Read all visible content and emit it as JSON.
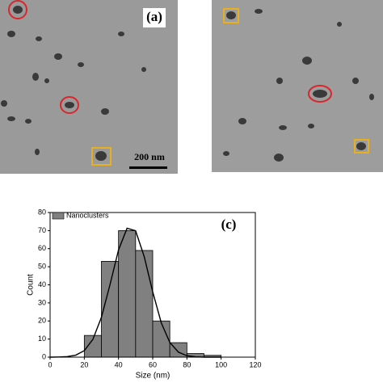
{
  "panel_a": {
    "label": "(a)",
    "scale_bar": "200 nm"
  },
  "chart_data": {
    "type": "histogram",
    "label": "(c)",
    "xlabel": "Size (nm)",
    "ylabel": "Count",
    "series": [
      {
        "name": "Nanoclusters",
        "color": "#808080"
      }
    ],
    "bins": [
      20,
      30,
      40,
      50,
      60,
      70,
      80,
      90,
      100
    ],
    "counts": [
      12,
      53,
      70,
      59,
      20,
      8,
      2,
      1
    ],
    "curve": {
      "color": "#000000",
      "x": [
        0,
        5,
        10,
        15,
        20,
        25,
        30,
        35,
        40,
        45,
        50,
        55,
        60,
        65,
        70,
        75,
        80,
        85,
        90,
        95,
        100
      ],
      "values": [
        0,
        0.1,
        0.3,
        1.1,
        3.6,
        9.8,
        22,
        40,
        59.3,
        71.3,
        69.9,
        55.7,
        36.1,
        19,
        8.1,
        2.8,
        0.8,
        0.2,
        0,
        0,
        0
      ]
    },
    "xlim": [
      0,
      120
    ],
    "xticks": [
      0,
      20,
      40,
      60,
      80,
      100,
      120
    ],
    "ylim": [
      0,
      80
    ],
    "yticks": [
      0,
      10,
      20,
      30,
      40,
      50,
      60,
      70,
      80
    ]
  }
}
